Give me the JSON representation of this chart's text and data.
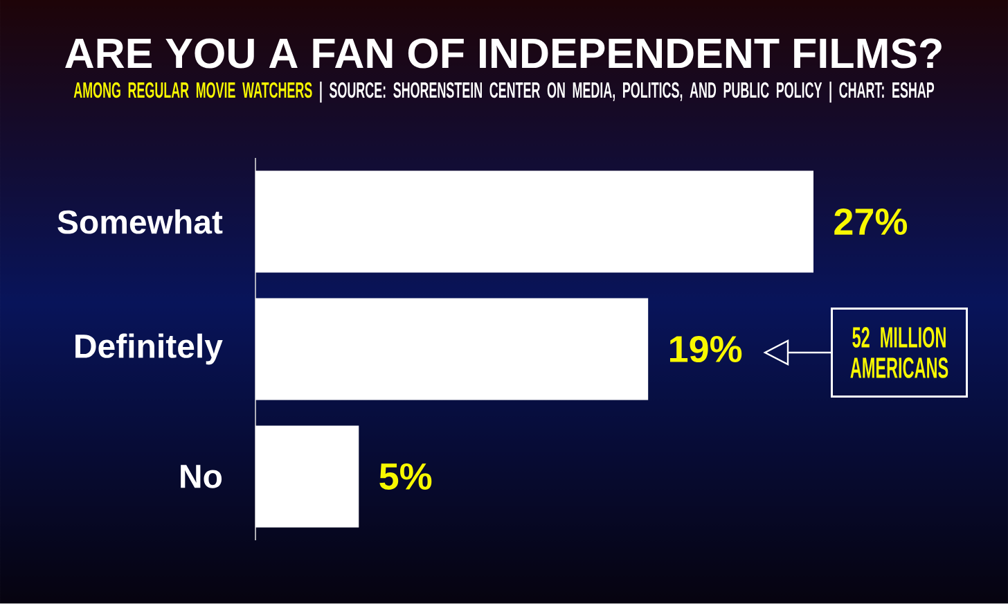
{
  "chart_data": {
    "type": "bar",
    "orientation": "horizontal",
    "title": "ARE YOU A FAN OF INDEPENDENT FILMS?",
    "subtitle": "AMONG REGULAR MOVIE WATCHERS",
    "categories": [
      "Somewhat",
      "Definitely",
      "No"
    ],
    "values": [
      27,
      19,
      5
    ],
    "value_labels": [
      "27%",
      "19%",
      "5%"
    ],
    "color": "#ffffff",
    "tick_labels": "y",
    "annotations": [
      "| SOURCE: SHORENSTEIN CENTER ON MEDIA, POLITICS, AND PUBLIC POLICY | CHART: ESHAP",
      "52 MILLION AMERICANS"
    ]
  }
}
